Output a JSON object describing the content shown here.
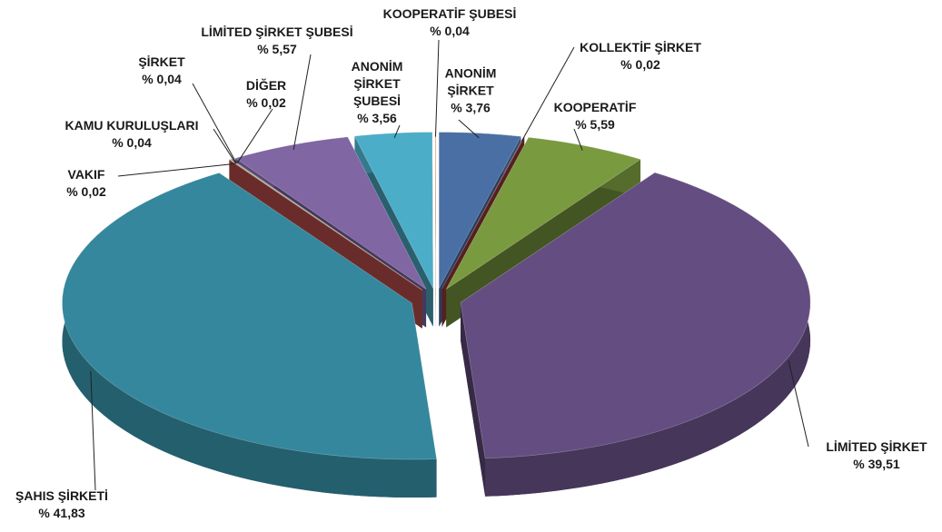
{
  "chart_data": {
    "type": "pie",
    "categories": [
      "ANONİM ŞİRKET",
      "KOLLEKTİF ŞİRKET",
      "KOOPERATİF",
      "LİMİTED ŞİRKET",
      "ŞAHIS ŞİRKETİ",
      "VAKIF",
      "KAMU KURULUŞLARI",
      "ŞİRKET",
      "DİĞER",
      "LİMİTED ŞİRKET ŞUBESİ",
      "ANONİM ŞİRKET ŞUBESİ",
      "KOOPERATİF ŞUBESİ"
    ],
    "values": [
      3.76,
      0.02,
      5.59,
      39.51,
      41.83,
      0.02,
      0.04,
      0.04,
      0.02,
      5.57,
      3.56,
      0.04
    ],
    "value_labels": [
      "% 3,76",
      "% 0,02",
      "% 5,59",
      "% 39,51",
      "% 41,83",
      "% 0,02",
      "% 0,04",
      "% 0,04",
      "% 0,02",
      "% 5,57",
      "% 3,56",
      "% 0,04"
    ],
    "colors": [
      "#4a6fa5",
      "#9b3b38",
      "#7a9a3f",
      "#644d80",
      "#34879d",
      "#c0504d",
      "#9bbb59",
      "#4f81bd",
      "#5a3815",
      "#8066a3",
      "#4cadc8",
      "#f3a26a"
    ]
  }
}
